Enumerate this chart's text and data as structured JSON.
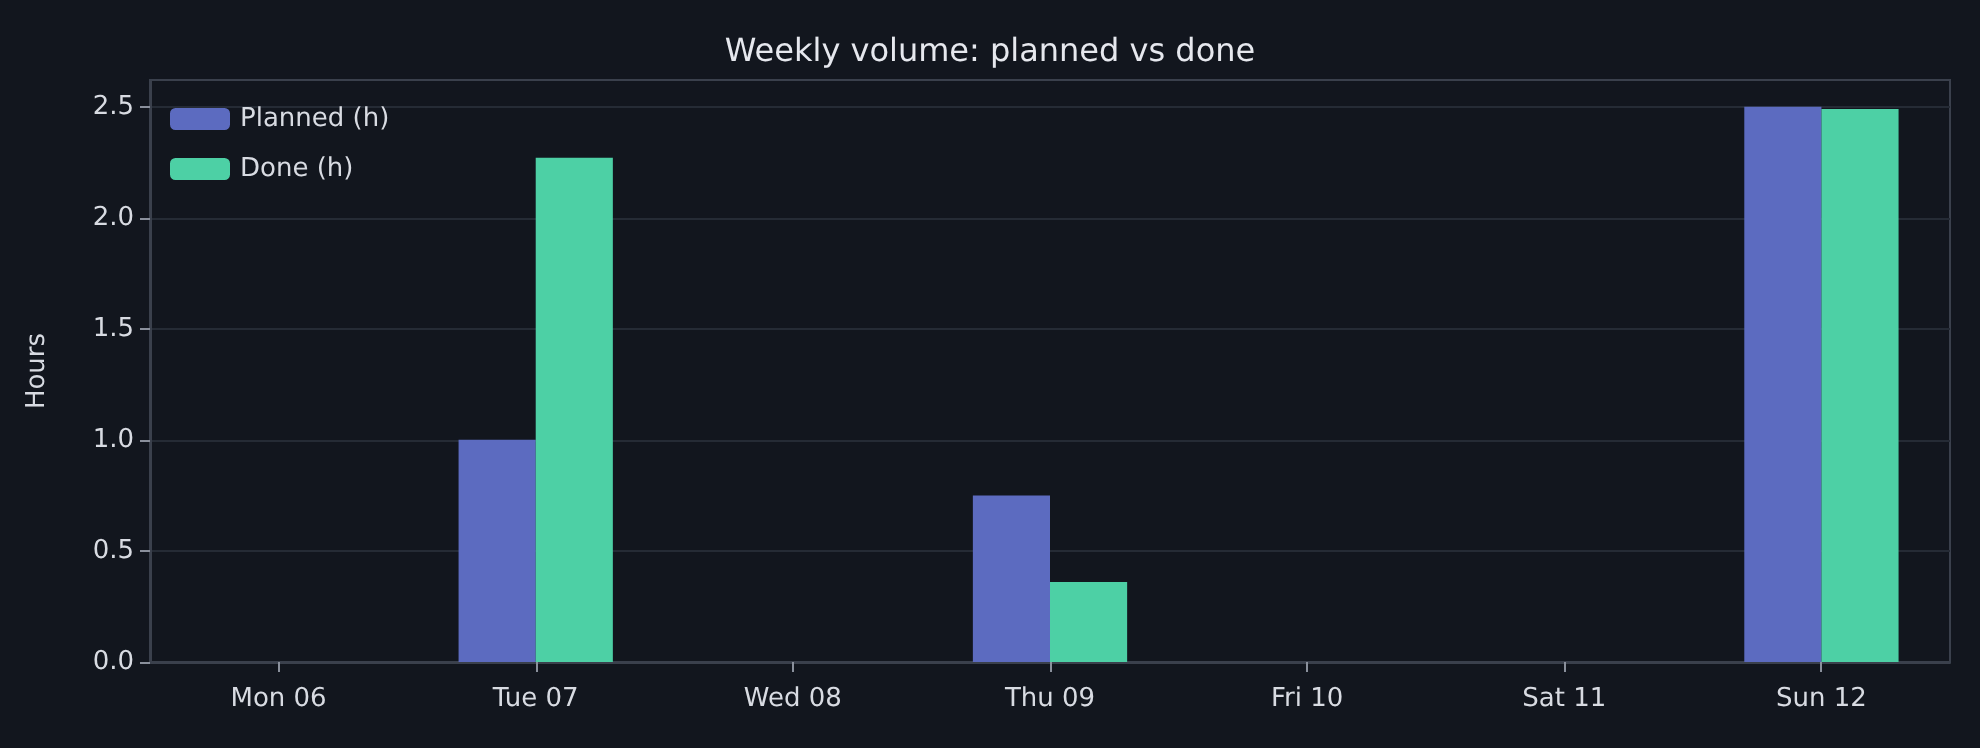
{
  "chart_data": {
    "type": "bar",
    "title": "Weekly volume: planned vs done",
    "ylabel": "Hours",
    "categories": [
      "Mon 06",
      "Tue 07",
      "Wed 08",
      "Thu 09",
      "Fri 10",
      "Sat 11",
      "Sun 12"
    ],
    "series": [
      {
        "name": "Planned (h)",
        "color": "#5c6bc0",
        "values": [
          0,
          1.0,
          0,
          0.75,
          0,
          0,
          2.5
        ]
      },
      {
        "name": "Done (h)",
        "color": "#4dd0a5",
        "values": [
          0,
          2.27,
          0,
          0.36,
          0,
          0,
          2.49
        ]
      }
    ],
    "ylim": [
      0,
      2.62
    ],
    "yticks": [
      {
        "value": 0,
        "label": "0.0"
      },
      {
        "value": 0.5,
        "label": "0.5"
      },
      {
        "value": 1,
        "label": "1.0"
      },
      {
        "value": 1.5,
        "label": "1.5"
      },
      {
        "value": 2,
        "label": "2.0"
      },
      {
        "value": 2.5,
        "label": "2.5"
      }
    ],
    "grid": "y",
    "legend": "top left"
  }
}
